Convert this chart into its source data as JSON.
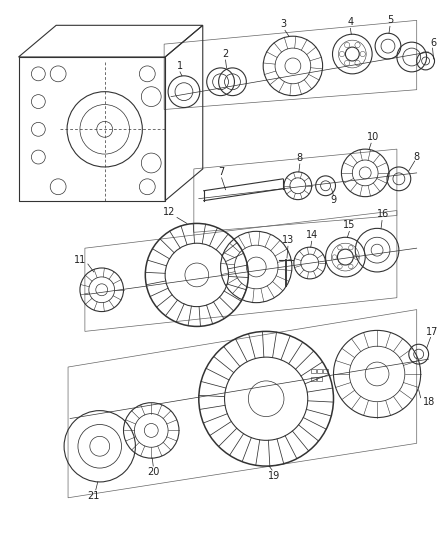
{
  "bg_color": "#ffffff",
  "line_color": "#333333",
  "label_color": "#222222",
  "fig_width": 4.39,
  "fig_height": 5.33,
  "dpi": 100
}
